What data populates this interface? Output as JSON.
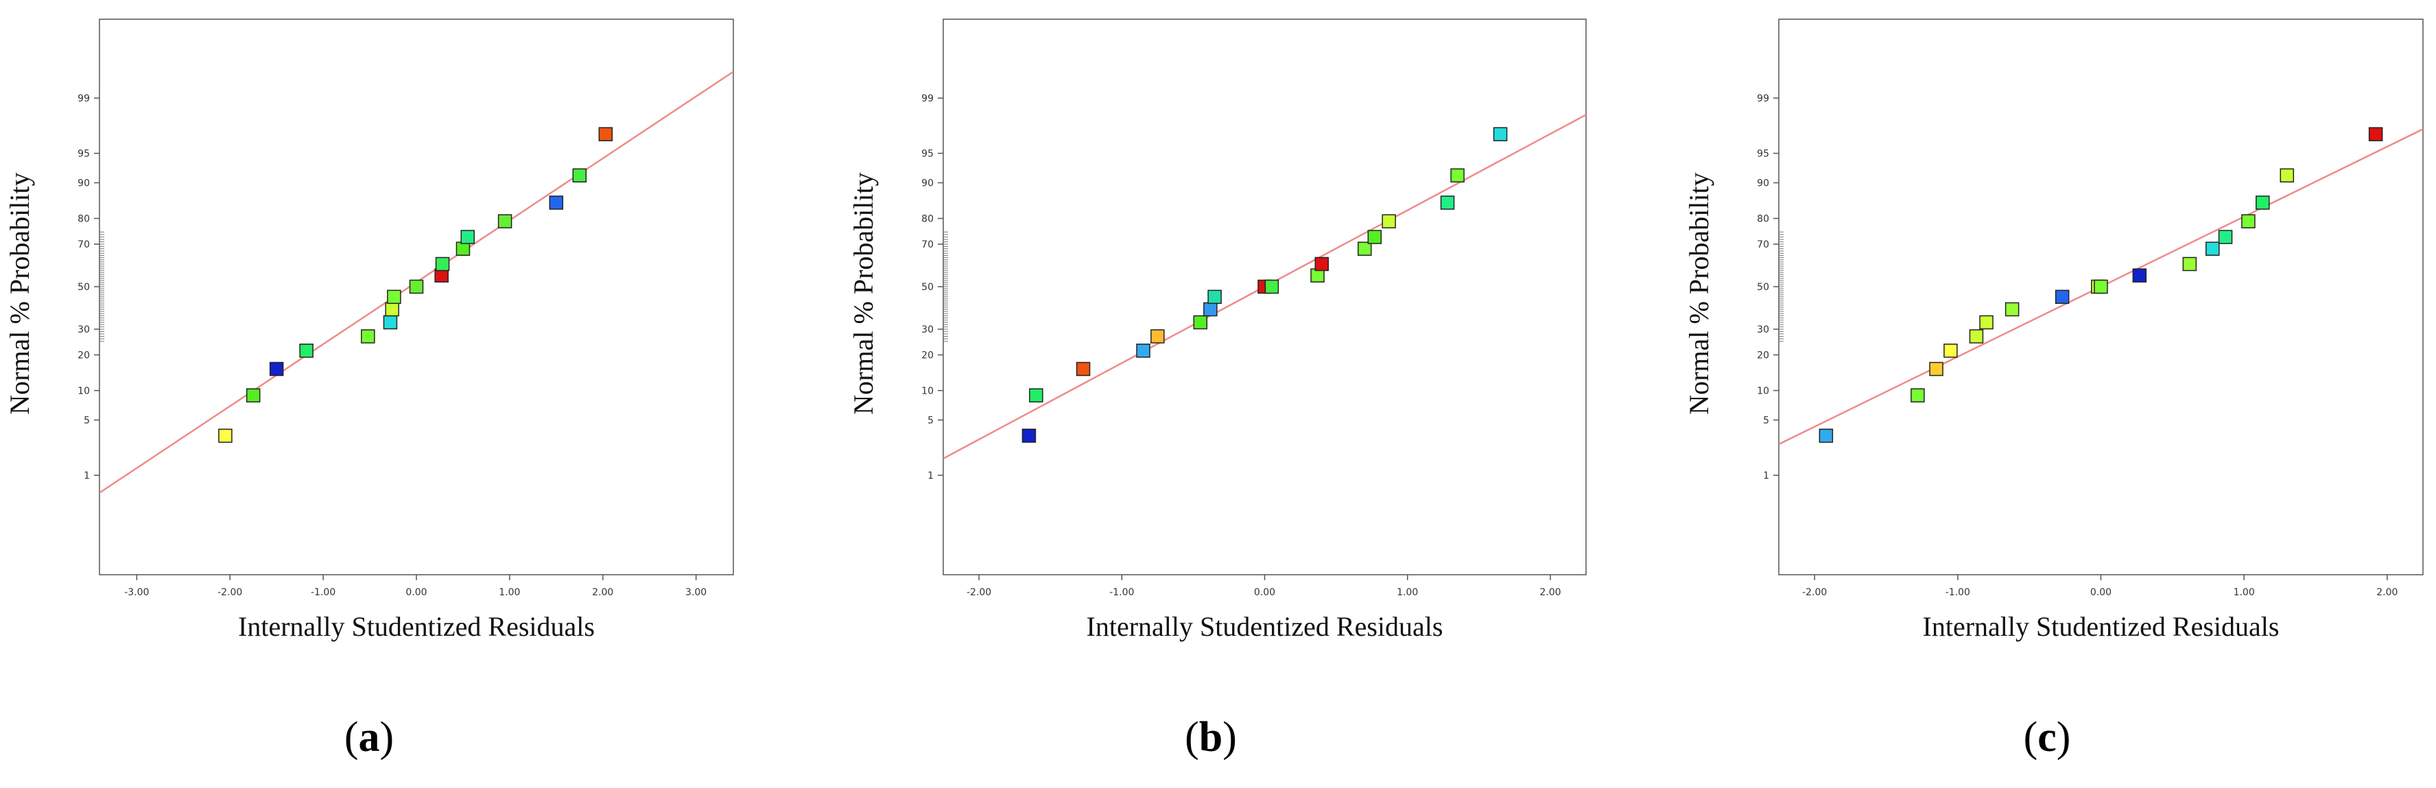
{
  "chart_data": [
    {
      "type": "scatter",
      "panel": "a",
      "caption": {
        "open": "(",
        "letter": "a",
        "close": ")"
      },
      "xlabel": "Internally Studentized Residuals",
      "ylabel": "Normal % Probability",
      "xlim": [
        -3.4,
        3.4
      ],
      "x_ticks": [
        -3,
        -2,
        -1,
        0,
        1,
        2,
        3
      ],
      "x_tick_labels": [
        "-3.00",
        "-2.00",
        "-1.00",
        "0.00",
        "1.00",
        "2.00",
        "3.00"
      ],
      "y_ticks": [
        1,
        5,
        10,
        20,
        30,
        50,
        70,
        80,
        90,
        95,
        99
      ],
      "y_tick_labels": [
        "1",
        "5",
        "10",
        "20",
        "30",
        "50",
        "70",
        "80",
        "90",
        "95",
        "99"
      ],
      "fit_line": {
        "from": [
          -3.4,
          0.55
        ],
        "to": [
          3.4,
          99.6
        ],
        "color": "#f08a8a"
      },
      "points": [
        {
          "x": -2.05,
          "y": 3.3,
          "color": "#ffff44"
        },
        {
          "x": -1.75,
          "y": 9.0,
          "color": "#55ee22"
        },
        {
          "x": -1.5,
          "y": 15.5,
          "color": "#1122cc"
        },
        {
          "x": -1.18,
          "y": 21.5,
          "color": "#22ee66"
        },
        {
          "x": -0.52,
          "y": 27.0,
          "color": "#77ff33"
        },
        {
          "x": -0.28,
          "y": 33.0,
          "color": "#22dddd"
        },
        {
          "x": -0.26,
          "y": 39.0,
          "color": "#ccff33"
        },
        {
          "x": -0.24,
          "y": 45.0,
          "color": "#77ff33"
        },
        {
          "x": 0.0,
          "y": 50.0,
          "color": "#66ee33"
        },
        {
          "x": 0.27,
          "y": 55.5,
          "color": "#dd1111"
        },
        {
          "x": 0.28,
          "y": 61.0,
          "color": "#33ee55"
        },
        {
          "x": 0.5,
          "y": 68.0,
          "color": "#55ee22"
        },
        {
          "x": 0.55,
          "y": 73.0,
          "color": "#22ee88"
        },
        {
          "x": 0.95,
          "y": 79.0,
          "color": "#66ee33"
        },
        {
          "x": 1.5,
          "y": 85.0,
          "color": "#2266ee"
        },
        {
          "x": 1.75,
          "y": 91.5,
          "color": "#44ee44"
        },
        {
          "x": 2.03,
          "y": 97.0,
          "color": "#ee5511"
        }
      ]
    },
    {
      "type": "scatter",
      "panel": "b",
      "caption": {
        "open": "(",
        "letter": "b",
        "close": ")"
      },
      "xlabel": "Internally Studentized Residuals",
      "ylabel": "Normal % Probability",
      "xlim": [
        -2.25,
        2.25
      ],
      "x_ticks": [
        -2,
        -1,
        0,
        1,
        2
      ],
      "x_tick_labels": [
        "-2.00",
        "-1.00",
        "0.00",
        "1.00",
        "2.00"
      ],
      "y_ticks": [
        1,
        5,
        10,
        20,
        30,
        50,
        70,
        80,
        90,
        95,
        99
      ],
      "y_tick_labels": [
        "1",
        "5",
        "10",
        "20",
        "30",
        "50",
        "70",
        "80",
        "90",
        "95",
        "99"
      ],
      "fit_line": {
        "from": [
          -2.25,
          1.7
        ],
        "to": [
          2.25,
          98.3
        ],
        "color": "#f08a8a"
      },
      "points": [
        {
          "x": -1.65,
          "y": 3.3,
          "color": "#1122cc"
        },
        {
          "x": -1.6,
          "y": 9.0,
          "color": "#22ee66"
        },
        {
          "x": -1.27,
          "y": 15.5,
          "color": "#ee5511"
        },
        {
          "x": -0.85,
          "y": 21.5,
          "color": "#33aaee"
        },
        {
          "x": -0.75,
          "y": 27.0,
          "color": "#ffbb33"
        },
        {
          "x": -0.45,
          "y": 33.0,
          "color": "#55ee22"
        },
        {
          "x": -0.38,
          "y": 39.0,
          "color": "#3399ee"
        },
        {
          "x": -0.35,
          "y": 45.0,
          "color": "#22ddaa"
        },
        {
          "x": 0.0,
          "y": 50.0,
          "color": "#dd1111"
        },
        {
          "x": 0.05,
          "y": 50.0,
          "color": "#44ee44"
        },
        {
          "x": 0.37,
          "y": 55.5,
          "color": "#77ff33"
        },
        {
          "x": 0.4,
          "y": 61.0,
          "color": "#dd1111"
        },
        {
          "x": 0.7,
          "y": 68.0,
          "color": "#77ff33"
        },
        {
          "x": 0.77,
          "y": 73.0,
          "color": "#55ee22"
        },
        {
          "x": 0.87,
          "y": 79.0,
          "color": "#ccff33"
        },
        {
          "x": 1.28,
          "y": 85.0,
          "color": "#22ee88"
        },
        {
          "x": 1.35,
          "y": 91.5,
          "color": "#77ff33"
        },
        {
          "x": 1.65,
          "y": 97.0,
          "color": "#22dddd"
        }
      ]
    },
    {
      "type": "scatter",
      "panel": "c",
      "caption": {
        "open": "(",
        "letter": "c",
        "close": ")"
      },
      "xlabel": "Internally Studentized Residuals",
      "ylabel": "Normal % Probability",
      "xlim": [
        -2.25,
        2.25
      ],
      "x_ticks": [
        -2,
        -1,
        0,
        1,
        2
      ],
      "x_tick_labels": [
        "-2.00",
        "-1.00",
        "0.00",
        "1.00",
        "2.00"
      ],
      "y_ticks": [
        1,
        5,
        10,
        20,
        30,
        50,
        70,
        80,
        90,
        95,
        99
      ],
      "y_tick_labels": [
        "1",
        "5",
        "10",
        "20",
        "30",
        "50",
        "70",
        "80",
        "90",
        "95",
        "99"
      ],
      "fit_line": {
        "from": [
          -2.25,
          2.6
        ],
        "to": [
          2.25,
          97.4
        ],
        "color": "#f08a8a"
      },
      "points": [
        {
          "x": -1.92,
          "y": 3.3,
          "color": "#33aaee"
        },
        {
          "x": -1.28,
          "y": 9.0,
          "color": "#77ff33"
        },
        {
          "x": -1.15,
          "y": 15.5,
          "color": "#ffcc33"
        },
        {
          "x": -1.05,
          "y": 21.5,
          "color": "#ffff44"
        },
        {
          "x": -0.87,
          "y": 27.0,
          "color": "#ccff33"
        },
        {
          "x": -0.8,
          "y": 33.0,
          "color": "#ccff33"
        },
        {
          "x": -0.62,
          "y": 39.0,
          "color": "#99ff33"
        },
        {
          "x": -0.27,
          "y": 45.0,
          "color": "#2266ee"
        },
        {
          "x": -0.02,
          "y": 50.0,
          "color": "#ccff33"
        },
        {
          "x": 0.0,
          "y": 50.0,
          "color": "#77ff33"
        },
        {
          "x": 0.27,
          "y": 55.5,
          "color": "#1122cc"
        },
        {
          "x": 0.62,
          "y": 61.0,
          "color": "#99ff33"
        },
        {
          "x": 0.78,
          "y": 68.0,
          "color": "#22dddd"
        },
        {
          "x": 0.87,
          "y": 73.0,
          "color": "#22ee88"
        },
        {
          "x": 1.03,
          "y": 79.0,
          "color": "#77ff33"
        },
        {
          "x": 1.13,
          "y": 85.0,
          "color": "#22ee66"
        },
        {
          "x": 1.3,
          "y": 91.5,
          "color": "#ccff33"
        },
        {
          "x": 1.92,
          "y": 97.0,
          "color": "#dd1111"
        }
      ]
    }
  ]
}
